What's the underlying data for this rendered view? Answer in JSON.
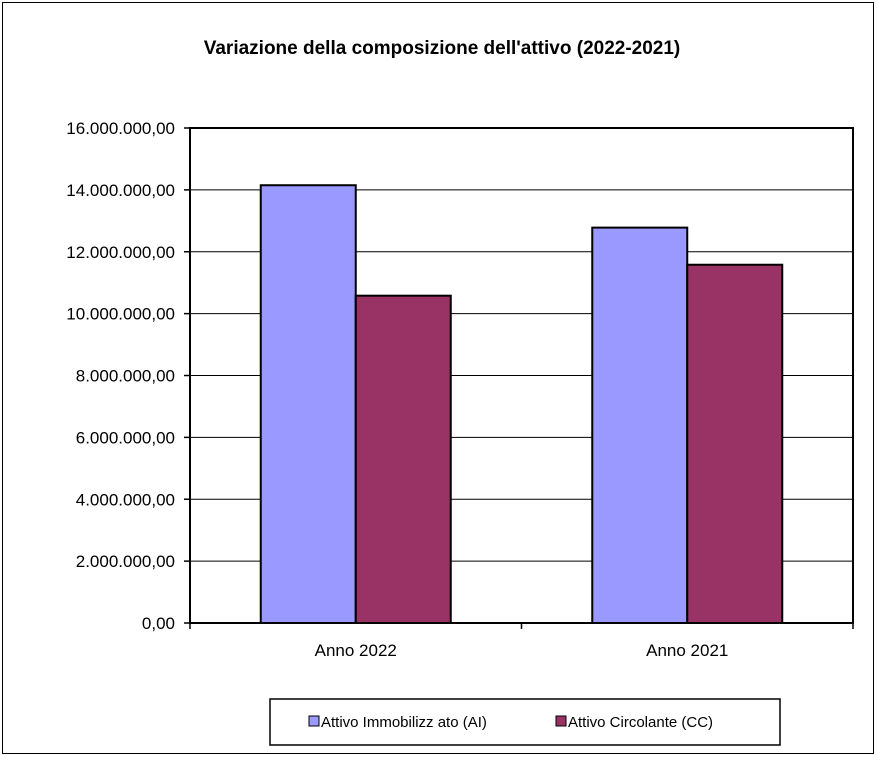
{
  "chart_data": {
    "type": "bar",
    "title": "Variazione della composizione dell'attivo (2022-2021)",
    "xlabel": "",
    "ylabel": "",
    "categories": [
      "Anno 2022",
      "Anno 2021"
    ],
    "series": [
      {
        "name": "Attivo Immobilizz ato (AI)",
        "color": "#9999ff",
        "values": [
          14150000,
          12780000
        ]
      },
      {
        "name": "Attivo Circolante (CC)",
        "color": "#993366",
        "values": [
          10580000,
          11580000
        ]
      }
    ],
    "ylim": [
      0,
      16000000
    ],
    "y_ticks": [
      {
        "value": 0,
        "label": "0,00"
      },
      {
        "value": 2000000,
        "label": "2.000.000,00"
      },
      {
        "value": 4000000,
        "label": "4.000.000,00"
      },
      {
        "value": 6000000,
        "label": "6.000.000,00"
      },
      {
        "value": 8000000,
        "label": "8.000.000,00"
      },
      {
        "value": 10000000,
        "label": "10.000.000,00"
      },
      {
        "value": 12000000,
        "label": "12.000.000,00"
      },
      {
        "value": 14000000,
        "label": "14.000.000,00"
      },
      {
        "value": 16000000,
        "label": "16.000.000,00"
      }
    ],
    "grid": true,
    "legend_position": "bottom"
  }
}
